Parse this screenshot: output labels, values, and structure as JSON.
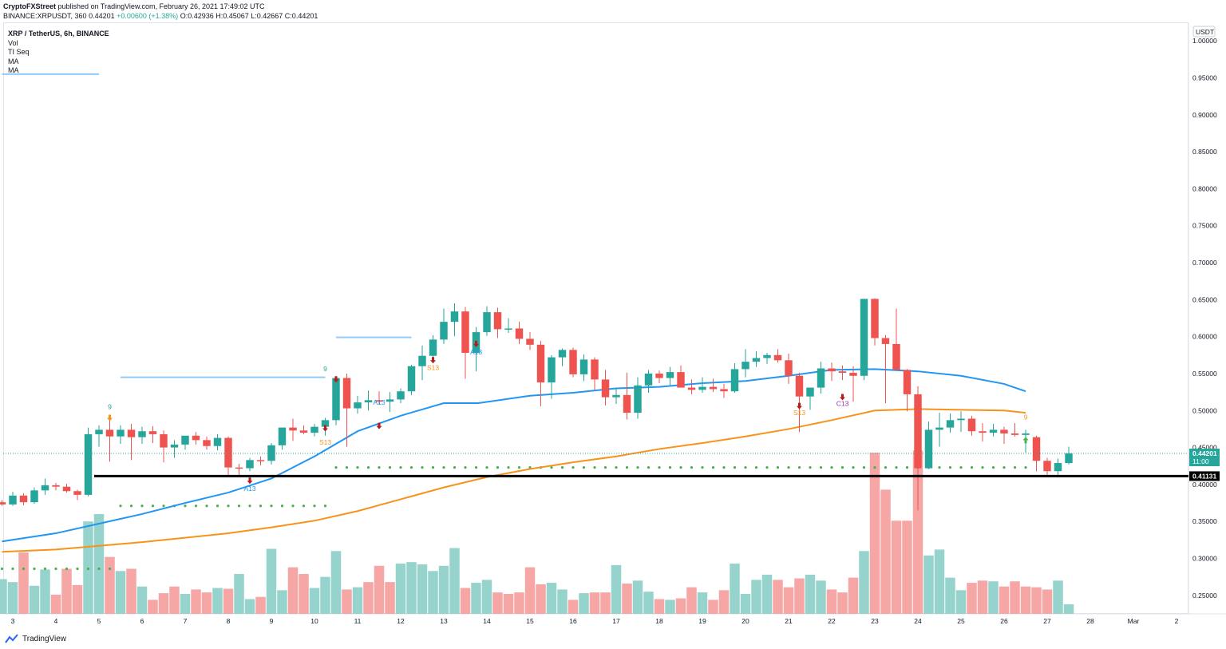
{
  "header": {
    "publisher": "CryptoFXStreet",
    "published_text": "published on TradingView.com, February 26, 2021 17:49:02 UTC",
    "symbol_line": "BINANCE:XRPUSDT, 360",
    "last": "0.44201",
    "change": "+0.00600 (+1.38%)",
    "ohlc": "O:0.42936 H:0.45067 L:0.42667 C:0.44201"
  },
  "legend": {
    "title": "XRP / TetherUS, 6h, BINANCE",
    "items": [
      "Vol",
      "TI Seq",
      "MA",
      "MA"
    ]
  },
  "currency_badge": "USDT",
  "footer": {
    "brand": "TradingView"
  },
  "colors": {
    "up": "#26a69a",
    "down": "#ef5350",
    "vol_up": "#95d3cc",
    "vol_down": "#f5a6a5",
    "ma_fast": "#2196f3",
    "ma_slow": "#f7931a",
    "support": "#000000",
    "dots": "#4caf50"
  },
  "chart_data": {
    "type": "candlestick",
    "title": "XRP / TetherUS, 6h, BINANCE",
    "ylim": [
      0.225,
      1.025
    ],
    "y_ticks": [
      "1.00000",
      "0.95000",
      "0.90000",
      "0.85000",
      "0.80000",
      "0.75000",
      "0.70000",
      "0.65000",
      "0.60000",
      "0.55000",
      "0.50000",
      "0.45000",
      "0.40000",
      "0.35000",
      "0.30000",
      "0.25000"
    ],
    "x_ticks": [
      "3",
      "4",
      "5",
      "6",
      "7",
      "8",
      "9",
      "10",
      "11",
      "12",
      "13",
      "14",
      "15",
      "16",
      "17",
      "18",
      "19",
      "20",
      "21",
      "22",
      "23",
      "24",
      "25",
      "26",
      "27",
      "28",
      "Mar",
      "2"
    ],
    "x_tick_days": [
      3,
      4,
      5,
      6,
      7,
      8,
      9,
      10,
      11,
      12,
      13,
      14,
      15,
      16,
      17,
      18,
      19,
      20,
      21,
      22,
      23,
      24,
      25,
      26,
      27,
      28,
      29,
      30
    ],
    "first_bar_day": 2.75,
    "bars_per_day": 4,
    "candles": [
      [
        0.376,
        0.379,
        0.371,
        0.373
      ],
      [
        0.373,
        0.39,
        0.371,
        0.385
      ],
      [
        0.385,
        0.388,
        0.372,
        0.376
      ],
      [
        0.376,
        0.396,
        0.374,
        0.392
      ],
      [
        0.392,
        0.408,
        0.386,
        0.399
      ],
      [
        0.399,
        0.402,
        0.392,
        0.397
      ],
      [
        0.397,
        0.401,
        0.389,
        0.391
      ],
      [
        0.391,
        0.393,
        0.379,
        0.386
      ],
      [
        0.386,
        0.477,
        0.384,
        0.468
      ],
      [
        0.468,
        0.48,
        0.451,
        0.474
      ],
      [
        0.474,
        0.49,
        0.431,
        0.465
      ],
      [
        0.465,
        0.48,
        0.455,
        0.474
      ],
      [
        0.474,
        0.482,
        0.433,
        0.464
      ],
      [
        0.464,
        0.478,
        0.455,
        0.472
      ],
      [
        0.472,
        0.479,
        0.456,
        0.468
      ],
      [
        0.468,
        0.473,
        0.43,
        0.45
      ],
      [
        0.45,
        0.46,
        0.436,
        0.454
      ],
      [
        0.454,
        0.465,
        0.447,
        0.466
      ],
      [
        0.466,
        0.471,
        0.454,
        0.46
      ],
      [
        0.46,
        0.465,
        0.447,
        0.452
      ],
      [
        0.452,
        0.468,
        0.446,
        0.463
      ],
      [
        0.463,
        0.465,
        0.412,
        0.423
      ],
      [
        0.423,
        0.428,
        0.412,
        0.422
      ],
      [
        0.422,
        0.436,
        0.418,
        0.433
      ],
      [
        0.433,
        0.438,
        0.426,
        0.432
      ],
      [
        0.432,
        0.456,
        0.427,
        0.453
      ],
      [
        0.453,
        0.477,
        0.447,
        0.477
      ],
      [
        0.477,
        0.489,
        0.459,
        0.473
      ],
      [
        0.473,
        0.48,
        0.468,
        0.47
      ],
      [
        0.47,
        0.482,
        0.465,
        0.478
      ],
      [
        0.478,
        0.49,
        0.466,
        0.487
      ],
      [
        0.487,
        0.545,
        0.48,
        0.544
      ],
      [
        0.544,
        0.55,
        0.451,
        0.503
      ],
      [
        0.503,
        0.52,
        0.496,
        0.511
      ],
      [
        0.511,
        0.527,
        0.5,
        0.514
      ],
      [
        0.514,
        0.526,
        0.508,
        0.512
      ],
      [
        0.512,
        0.525,
        0.498,
        0.515
      ],
      [
        0.515,
        0.53,
        0.51,
        0.526
      ],
      [
        0.526,
        0.562,
        0.521,
        0.56
      ],
      [
        0.56,
        0.588,
        0.541,
        0.574
      ],
      [
        0.574,
        0.602,
        0.565,
        0.596
      ],
      [
        0.596,
        0.638,
        0.59,
        0.62
      ],
      [
        0.62,
        0.645,
        0.601,
        0.634
      ],
      [
        0.634,
        0.64,
        0.543,
        0.578
      ],
      [
        0.578,
        0.613,
        0.553,
        0.606
      ],
      [
        0.606,
        0.641,
        0.601,
        0.633
      ],
      [
        0.633,
        0.639,
        0.598,
        0.61
      ],
      [
        0.61,
        0.625,
        0.605,
        0.611
      ],
      [
        0.611,
        0.62,
        0.59,
        0.597
      ],
      [
        0.597,
        0.606,
        0.582,
        0.589
      ],
      [
        0.589,
        0.594,
        0.506,
        0.538
      ],
      [
        0.538,
        0.575,
        0.516,
        0.572
      ],
      [
        0.572,
        0.584,
        0.56,
        0.582
      ],
      [
        0.582,
        0.585,
        0.545,
        0.549
      ],
      [
        0.549,
        0.576,
        0.54,
        0.569
      ],
      [
        0.569,
        0.572,
        0.527,
        0.542
      ],
      [
        0.542,
        0.555,
        0.507,
        0.518
      ],
      [
        0.518,
        0.531,
        0.509,
        0.521
      ],
      [
        0.521,
        0.551,
        0.488,
        0.497
      ],
      [
        0.497,
        0.545,
        0.489,
        0.534
      ],
      [
        0.534,
        0.555,
        0.524,
        0.55
      ],
      [
        0.55,
        0.554,
        0.537,
        0.544
      ],
      [
        0.544,
        0.559,
        0.534,
        0.552
      ],
      [
        0.552,
        0.561,
        0.535,
        0.531
      ],
      [
        0.531,
        0.542,
        0.522,
        0.528
      ],
      [
        0.528,
        0.545,
        0.524,
        0.532
      ],
      [
        0.532,
        0.543,
        0.525,
        0.529
      ],
      [
        0.529,
        0.536,
        0.517,
        0.526
      ],
      [
        0.526,
        0.564,
        0.524,
        0.556
      ],
      [
        0.556,
        0.583,
        0.545,
        0.566
      ],
      [
        0.566,
        0.58,
        0.559,
        0.571
      ],
      [
        0.571,
        0.578,
        0.563,
        0.575
      ],
      [
        0.575,
        0.583,
        0.565,
        0.568
      ],
      [
        0.568,
        0.577,
        0.536,
        0.547
      ],
      [
        0.547,
        0.551,
        0.471,
        0.519
      ],
      [
        0.519,
        0.531,
        0.501,
        0.531
      ],
      [
        0.531,
        0.566,
        0.523,
        0.557
      ],
      [
        0.557,
        0.565,
        0.54,
        0.553
      ],
      [
        0.553,
        0.561,
        0.541,
        0.551
      ],
      [
        0.551,
        0.56,
        0.512,
        0.547
      ],
      [
        0.547,
        0.651,
        0.541,
        0.651
      ],
      [
        0.651,
        0.652,
        0.588,
        0.598
      ],
      [
        0.598,
        0.602,
        0.51,
        0.59
      ],
      [
        0.59,
        0.638,
        0.558,
        0.555
      ],
      [
        0.555,
        0.556,
        0.499,
        0.522
      ],
      [
        0.522,
        0.533,
        0.365,
        0.422
      ],
      [
        0.422,
        0.485,
        0.421,
        0.474
      ],
      [
        0.474,
        0.497,
        0.451,
        0.477
      ],
      [
        0.477,
        0.496,
        0.47,
        0.487
      ],
      [
        0.487,
        0.499,
        0.471,
        0.489
      ],
      [
        0.489,
        0.493,
        0.466,
        0.472
      ],
      [
        0.472,
        0.483,
        0.458,
        0.47
      ],
      [
        0.47,
        0.482,
        0.465,
        0.474
      ],
      [
        0.474,
        0.478,
        0.455,
        0.469
      ],
      [
        0.469,
        0.483,
        0.465,
        0.467
      ],
      [
        0.467,
        0.474,
        0.443,
        0.469
      ],
      [
        0.464,
        0.466,
        0.418,
        0.432
      ],
      [
        0.432,
        0.436,
        0.411,
        0.418
      ],
      [
        0.418,
        0.435,
        0.413,
        0.429
      ],
      [
        0.429,
        0.451,
        0.427,
        0.442
      ]
    ],
    "volume_up": [
      true,
      true,
      false,
      true,
      true,
      false,
      false,
      false,
      true,
      true,
      false,
      true,
      false,
      true,
      false,
      false,
      false,
      true,
      false,
      false,
      true,
      false,
      true,
      true,
      false,
      true,
      true,
      false,
      false,
      true,
      true,
      true,
      false,
      true,
      false,
      false,
      false,
      true,
      true,
      true,
      true,
      true,
      true,
      false,
      true,
      true,
      false,
      false,
      false,
      false,
      false,
      true,
      true,
      false,
      true,
      false,
      false,
      true,
      false,
      true,
      true,
      false,
      true,
      false,
      false,
      true,
      false,
      false,
      true,
      true,
      true,
      true,
      false,
      false,
      false,
      true,
      true,
      false,
      false,
      false,
      true,
      false,
      false,
      false,
      false,
      false,
      true,
      true,
      true,
      true,
      false,
      false,
      true,
      false,
      false,
      false,
      false,
      false,
      true,
      true
    ],
    "volume": [
      0.272,
      0.268,
      0.308,
      0.263,
      0.285,
      0.251,
      0.286,
      0.264,
      0.35,
      0.36,
      0.302,
      0.283,
      0.286,
      0.262,
      0.244,
      0.253,
      0.262,
      0.252,
      0.258,
      0.254,
      0.26,
      0.259,
      0.279,
      0.245,
      0.248,
      0.313,
      0.257,
      0.288,
      0.279,
      0.26,
      0.275,
      0.31,
      0.258,
      0.261,
      0.268,
      0.29,
      0.268,
      0.293,
      0.295,
      0.292,
      0.283,
      0.29,
      0.314,
      0.26,
      0.267,
      0.271,
      0.254,
      0.252,
      0.254,
      0.288,
      0.265,
      0.267,
      0.258,
      0.244,
      0.253,
      0.254,
      0.254,
      0.291,
      0.266,
      0.27,
      0.255,
      0.245,
      0.244,
      0.246,
      0.261,
      0.254,
      0.244,
      0.257,
      0.293,
      0.252,
      0.271,
      0.278,
      0.271,
      0.261,
      0.273,
      0.278,
      0.27,
      0.258,
      0.254,
      0.274,
      0.31,
      0.443,
      0.393,
      0.351,
      0.351,
      0.446,
      0.304,
      0.312,
      0.274,
      0.257,
      0.267,
      0.27,
      0.269,
      0.262,
      0.269,
      0.262,
      0.261,
      0.258,
      0.27,
      0.238
    ],
    "ma_fast": {
      "name": "MA",
      "points": [
        [
          2.75,
          0.323
        ],
        [
          4.0,
          0.334
        ],
        [
          5.0,
          0.347
        ],
        [
          6.0,
          0.36
        ],
        [
          7.0,
          0.375
        ],
        [
          8.0,
          0.389
        ],
        [
          9.0,
          0.408
        ],
        [
          10.0,
          0.438
        ],
        [
          11.0,
          0.472
        ],
        [
          12.0,
          0.493
        ],
        [
          13.0,
          0.51
        ],
        [
          13.8,
          0.51
        ],
        [
          15.0,
          0.52
        ],
        [
          16.0,
          0.524
        ],
        [
          17.0,
          0.53
        ],
        [
          18.0,
          0.532
        ],
        [
          19.0,
          0.537
        ],
        [
          20.0,
          0.54
        ],
        [
          21.0,
          0.547
        ],
        [
          22.0,
          0.555
        ],
        [
          23.0,
          0.556
        ],
        [
          24.0,
          0.553
        ],
        [
          25.0,
          0.547
        ],
        [
          26.0,
          0.536
        ],
        [
          26.5,
          0.526
        ]
      ]
    },
    "ma_slow": {
      "name": "MA",
      "points": [
        [
          2.75,
          0.309
        ],
        [
          4.0,
          0.312
        ],
        [
          5.0,
          0.317
        ],
        [
          6.0,
          0.322
        ],
        [
          7.0,
          0.328
        ],
        [
          8.0,
          0.334
        ],
        [
          9.0,
          0.342
        ],
        [
          10.0,
          0.351
        ],
        [
          11.0,
          0.364
        ],
        [
          12.0,
          0.38
        ],
        [
          13.0,
          0.396
        ],
        [
          14.0,
          0.41
        ],
        [
          15.0,
          0.421
        ],
        [
          16.0,
          0.43
        ],
        [
          17.0,
          0.438
        ],
        [
          18.0,
          0.448
        ],
        [
          19.0,
          0.456
        ],
        [
          20.0,
          0.465
        ],
        [
          21.0,
          0.475
        ],
        [
          22.0,
          0.487
        ],
        [
          23.0,
          0.5
        ],
        [
          24.0,
          0.502
        ],
        [
          25.0,
          0.501
        ],
        [
          26.0,
          0.5
        ],
        [
          26.5,
          0.497
        ]
      ]
    },
    "support_level": 0.41131,
    "price_labels": [
      {
        "value": 0.44201,
        "text": "0.44201",
        "sub": "11:00"
      },
      {
        "value": 0.41131,
        "text": "0.41131"
      }
    ],
    "resistance_lines": [
      {
        "from": 2.75,
        "to": 5.0,
        "y": 0.955
      },
      {
        "from": 5.5,
        "to": 10.25,
        "y": 0.545
      },
      {
        "from": 10.5,
        "to": 12.25,
        "y": 0.599
      }
    ],
    "dot_lines": [
      {
        "from": 2.75,
        "to": 5.25,
        "y": 0.286
      },
      {
        "from": 5.5,
        "to": 10.25,
        "y": 0.371
      },
      {
        "from": 10.5,
        "to": 26.5,
        "y": 0.423
      }
    ],
    "annotations": [
      {
        "day": 5.25,
        "y": 0.502,
        "text": "9",
        "color": "#26a69a"
      },
      {
        "day": 10.25,
        "y": 0.553,
        "text": "9",
        "color": "#26a69a"
      },
      {
        "day": 26.5,
        "y": 0.488,
        "text": "9",
        "color": "#f7931a"
      },
      {
        "day": 10.25,
        "y": 0.454,
        "text": "S13",
        "color": "#f7931a"
      },
      {
        "day": 12.75,
        "y": 0.555,
        "text": "S13",
        "color": "#f7931a"
      },
      {
        "day": 21.25,
        "y": 0.494,
        "text": "S13",
        "color": "#f7931a"
      },
      {
        "day": 8.5,
        "y": 0.391,
        "text": "A13",
        "color": "#2196f3"
      },
      {
        "day": 11.5,
        "y": 0.508,
        "text": "A13",
        "color": "#2196f3"
      },
      {
        "day": 13.75,
        "y": 0.576,
        "text": "A13",
        "color": "#2196f3"
      },
      {
        "day": 22.25,
        "y": 0.506,
        "text": "C13",
        "color": "#9c27b0"
      }
    ],
    "arrows": [
      {
        "day": 5.25,
        "y": 0.489,
        "dir": "down",
        "color": "#f7931a"
      },
      {
        "day": 10.25,
        "y": 0.475,
        "dir": "down",
        "color": "#b71c1c"
      },
      {
        "day": 10.5,
        "y": 0.541,
        "dir": "down",
        "color": "#b71c1c"
      },
      {
        "day": 11.5,
        "y": 0.478,
        "dir": "down",
        "color": "#b71c1c"
      },
      {
        "day": 12.75,
        "y": 0.567,
        "dir": "down",
        "color": "#b71c1c"
      },
      {
        "day": 13.75,
        "y": 0.589,
        "dir": "down",
        "color": "#b71c1c"
      },
      {
        "day": 8.5,
        "y": 0.404,
        "dir": "down",
        "color": "#b71c1c"
      },
      {
        "day": 21.25,
        "y": 0.505,
        "dir": "down",
        "color": "#b71c1c"
      },
      {
        "day": 22.25,
        "y": 0.517,
        "dir": "down",
        "color": "#b71c1c"
      },
      {
        "day": 26.5,
        "y": 0.461,
        "dir": "up",
        "color": "#4caf50"
      }
    ]
  }
}
